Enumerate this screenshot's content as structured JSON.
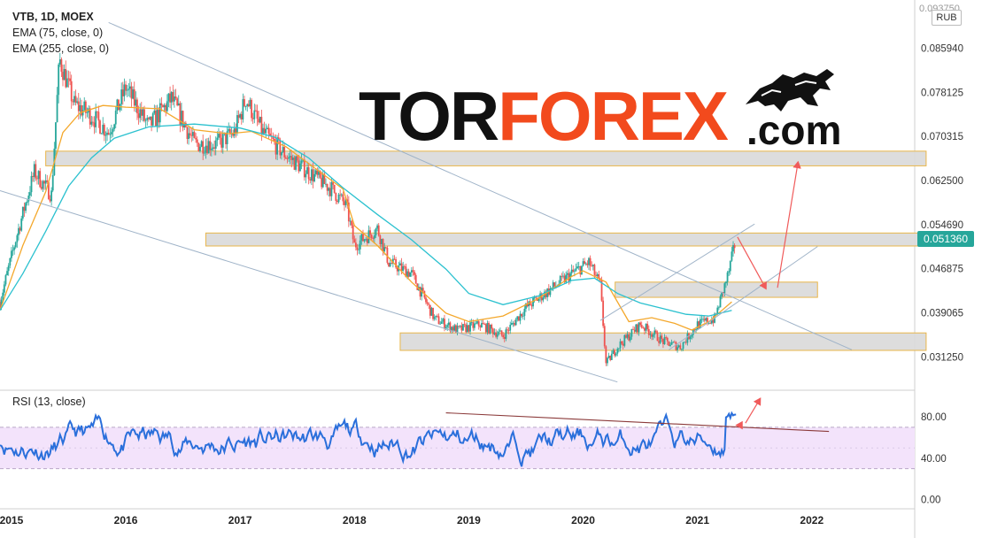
{
  "header": {
    "symbol": "VTB, 1D, MOEX",
    "ema1": "EMA (75, close, 0)",
    "ema2": "EMA (255, close, 0)",
    "rsi": "RSI (13, close)",
    "currency": "RUB",
    "top_tick": "0.093750"
  },
  "logo": {
    "part1": "TOR",
    "part2": "FOREX",
    "part3": ".com"
  },
  "current_price": "0.051360",
  "colors": {
    "price_up": "#26a69a",
    "price_down": "#ef5350",
    "ema75": "#f4a82c",
    "ema255": "#2bc1cf",
    "rsi": "#2a6fdb",
    "trend_lines": "#9fb3c8",
    "arrows": "#f05a5a",
    "zone_fill": "#d9d9d9",
    "zone_border": "#e8b64a",
    "rsi_band": "#f3e3fb",
    "brand": "#f24a1d"
  },
  "chart_data": [
    {
      "type": "line",
      "title": "VTB, 1D, MOEX",
      "ylim": [
        0.0255,
        0.0937
      ],
      "xlim": [
        2014.9,
        2022.9
      ],
      "ytick_labels": [
        "0.085940",
        "0.078125",
        "0.070315",
        "0.062500",
        "0.054690",
        "0.046875",
        "0.039065",
        "0.031250"
      ],
      "yticks": [
        0.08594,
        0.078125,
        0.070315,
        0.0625,
        0.05469,
        0.046875,
        0.039065,
        0.03125
      ],
      "xtick_labels": [
        "2015",
        "2016",
        "2017",
        "2018",
        "2019",
        "2020",
        "2021",
        "2022"
      ],
      "xticks": [
        2015,
        2016,
        2017,
        2018,
        2019,
        2020,
        2021,
        2022
      ],
      "last_value": 0.05136,
      "series": [
        {
          "name": "EMA (75, close, 0)",
          "x": [
            2014.9,
            2015.1,
            2015.3,
            2015.45,
            2015.6,
            2015.8,
            2016.0,
            2016.3,
            2016.6,
            2016.9,
            2017.1,
            2017.4,
            2017.7,
            2017.9,
            2018.0,
            2018.2,
            2018.5,
            2018.8,
            2019.0,
            2019.3,
            2019.6,
            2019.9,
            2020.0,
            2020.2,
            2020.4,
            2020.6,
            2020.8,
            2020.95,
            2021.1,
            2021.3
          ],
          "y": [
            0.0395,
            0.051,
            0.0605,
            0.071,
            0.0745,
            0.0758,
            0.0755,
            0.0752,
            0.0715,
            0.0708,
            0.0712,
            0.0685,
            0.064,
            0.061,
            0.0545,
            0.051,
            0.0445,
            0.039,
            0.0375,
            0.0385,
            0.0415,
            0.0455,
            0.0465,
            0.0445,
            0.0375,
            0.0382,
            0.0372,
            0.036,
            0.0375,
            0.041
          ]
        },
        {
          "name": "EMA (255, close, 0)",
          "x": [
            2014.9,
            2015.1,
            2015.3,
            2015.5,
            2015.7,
            2015.9,
            2016.2,
            2016.6,
            2017.0,
            2017.3,
            2017.6,
            2017.9,
            2018.2,
            2018.5,
            2018.8,
            2019.0,
            2019.3,
            2019.6,
            2019.9,
            2020.1,
            2020.3,
            2020.5,
            2020.7,
            2020.9,
            2021.1,
            2021.3
          ],
          "y": [
            0.0395,
            0.046,
            0.0535,
            0.0615,
            0.0665,
            0.07,
            0.072,
            0.0725,
            0.0718,
            0.0702,
            0.0665,
            0.0612,
            0.0565,
            0.052,
            0.0468,
            0.0425,
            0.0405,
            0.042,
            0.0448,
            0.0452,
            0.0425,
            0.0408,
            0.0398,
            0.0388,
            0.0385,
            0.0395
          ]
        }
      ]
    },
    {
      "type": "line",
      "title": "RSI (13, close)",
      "ylim": [
        -8,
        105
      ],
      "ytick_labels": [
        "80.00",
        "40.00",
        "0.00"
      ],
      "yticks": [
        80,
        40,
        0
      ],
      "band": [
        30,
        70
      ]
    }
  ]
}
